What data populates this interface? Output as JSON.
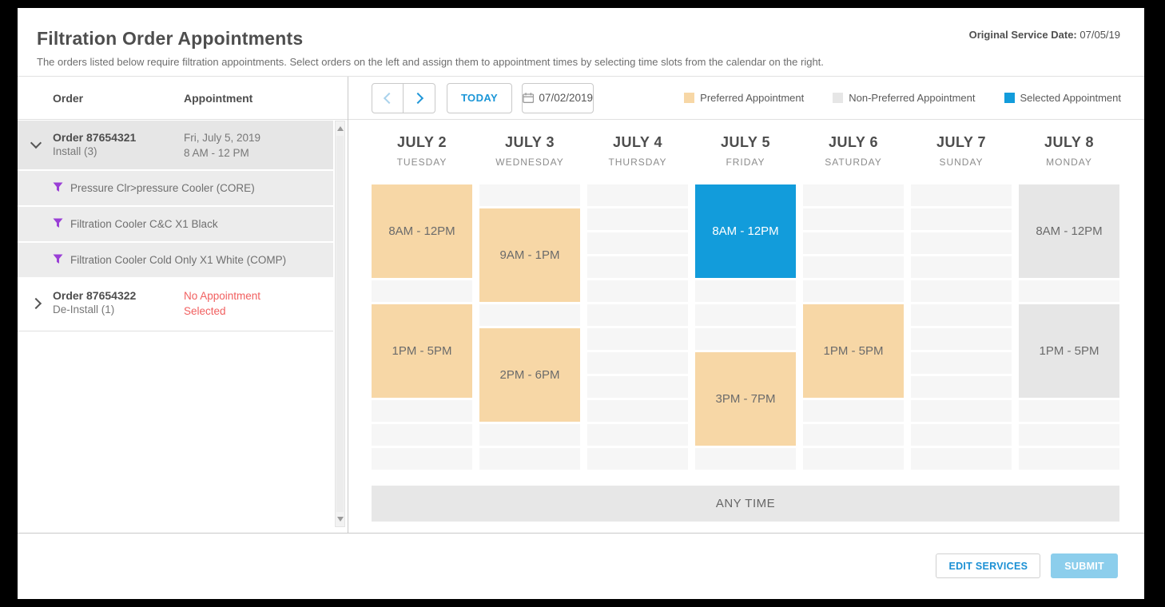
{
  "page": {
    "title": "Filtration Order Appointments",
    "subtitle": "The orders listed below require filtration appointments. Select orders on the left and assign them to appointment times by selecting time slots from the calendar on the right.",
    "original_service_date_label": "Original Service Date:",
    "original_service_date_value": "07/05/19"
  },
  "orders_panel": {
    "columns": {
      "order": "Order",
      "appointment": "Appointment"
    },
    "orders": [
      {
        "id_label": "Order 87654321",
        "type_label": "Install (3)",
        "appointment_line1": "Fri, July 5, 2019",
        "appointment_line2": "8 AM - 12 PM",
        "no_appointment": false,
        "expanded": true,
        "items": [
          "Pressure Clr>pressure Cooler (CORE)",
          "Filtration Cooler C&C X1 Black",
          "Filtration Cooler Cold Only X1 White (COMP)"
        ]
      },
      {
        "id_label": "Order 87654322",
        "type_label": "De-Install (1)",
        "appointment_line1": "No Appointment",
        "appointment_line2": "Selected",
        "no_appointment": true,
        "expanded": false,
        "items": []
      }
    ]
  },
  "calendar": {
    "toolbar": {
      "today_label": "TODAY",
      "date_value": "07/02/2019"
    },
    "legend": [
      {
        "label": "Preferred Appointment",
        "color": "#f7d7a6",
        "type": "preferred"
      },
      {
        "label": "Non-Preferred Appointment",
        "color": "#e6e6e6",
        "type": "nonpreferred"
      },
      {
        "label": "Selected Appointment",
        "color": "#129cdb",
        "type": "selected"
      }
    ],
    "rows": 12,
    "any_time_label": "ANY TIME",
    "days": [
      {
        "date": "JULY 2",
        "weekday": "TUESDAY",
        "slots": [
          {
            "label": "8AM - 12PM",
            "row": 1,
            "span": 4,
            "type": "preferred"
          },
          {
            "label": "1PM - 5PM",
            "row": 6,
            "span": 4,
            "type": "preferred"
          }
        ]
      },
      {
        "date": "JULY 3",
        "weekday": "WEDNESDAY",
        "slots": [
          {
            "label": "9AM - 1PM",
            "row": 2,
            "span": 4,
            "type": "preferred"
          },
          {
            "label": "2PM - 6PM",
            "row": 7,
            "span": 4,
            "type": "preferred"
          }
        ]
      },
      {
        "date": "JULY 4",
        "weekday": "THURSDAY",
        "slots": []
      },
      {
        "date": "JULY 5",
        "weekday": "FRIDAY",
        "slots": [
          {
            "label": "8AM - 12PM",
            "row": 1,
            "span": 4,
            "type": "selected"
          },
          {
            "label": "3PM - 7PM",
            "row": 8,
            "span": 4,
            "type": "preferred"
          }
        ]
      },
      {
        "date": "JULY 6",
        "weekday": "SATURDAY",
        "slots": [
          {
            "label": "1PM - 5PM",
            "row": 6,
            "span": 4,
            "type": "preferred"
          }
        ]
      },
      {
        "date": "JULY 7",
        "weekday": "SUNDAY",
        "slots": []
      },
      {
        "date": "JULY 8",
        "weekday": "MONDAY",
        "slots": [
          {
            "label": "8AM - 12PM",
            "row": 1,
            "span": 4,
            "type": "nonpreferred"
          },
          {
            "label": "1PM - 5PM",
            "row": 6,
            "span": 4,
            "type": "nonpreferred"
          }
        ]
      }
    ]
  },
  "footer": {
    "edit_services_label": "EDIT SERVICES",
    "submit_label": "SUBMIT"
  }
}
